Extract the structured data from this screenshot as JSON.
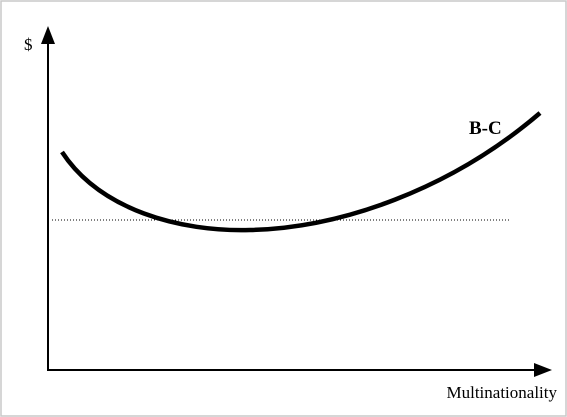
{
  "diagram": {
    "y_axis_label": "$",
    "x_axis_label": "Multinationality",
    "curve_label": "B-C"
  }
}
